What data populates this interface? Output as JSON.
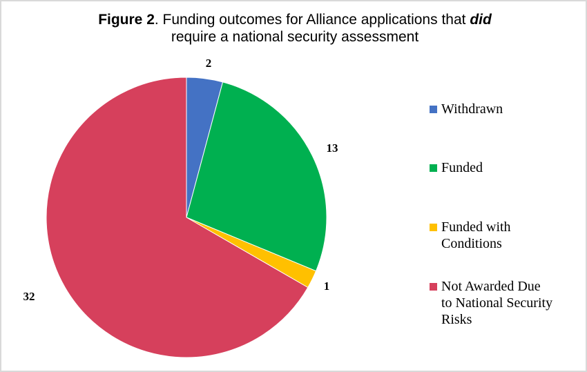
{
  "title": {
    "prefix_bold": "Figure 2",
    "middle": ". Funding outcomes for Alliance applications that ",
    "emphasis": "did",
    "line2": "require a national security assessment"
  },
  "legend": [
    {
      "label": "Withdrawn",
      "color": "#4472c4"
    },
    {
      "label": "Funded",
      "color": "#00b050"
    },
    {
      "label": "Funded with Conditions",
      "color": "#ffc000"
    },
    {
      "label": "Not Awarded Due to National Security Risks",
      "color": "#d6405c"
    }
  ],
  "data_labels": [
    "2",
    "13",
    "1",
    "32"
  ],
  "chart_data": {
    "type": "pie",
    "title": "Figure 2. Funding outcomes for Alliance applications that did require a national security assessment",
    "categories": [
      "Withdrawn",
      "Funded",
      "Funded with Conditions",
      "Not Awarded Due to National Security Risks"
    ],
    "values": [
      2,
      13,
      1,
      32
    ],
    "colors": [
      "#4472c4",
      "#00b050",
      "#ffc000",
      "#d6405c"
    ],
    "start_angle_deg": 0,
    "direction": "clockwise",
    "legend_position": "right",
    "data_labels": "outside_end"
  }
}
